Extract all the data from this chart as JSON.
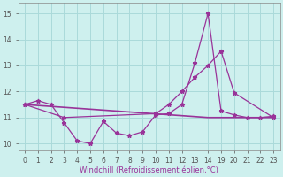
{
  "xlabel": "Windchill (Refroidissement éolien,°C)",
  "bg_color": "#cef0ee",
  "grid_color": "#aadada",
  "line_color": "#993399",
  "xlim": [
    -0.5,
    23.5
  ],
  "ylim": [
    9.75,
    15.4
  ],
  "xticks": [
    0,
    1,
    2,
    3,
    4,
    5,
    6,
    7,
    8,
    9,
    10,
    11,
    12,
    13,
    14,
    19,
    20,
    21,
    22,
    23
  ],
  "yticks": [
    10,
    11,
    12,
    13,
    14,
    15
  ],
  "tick_fontsize": 5.5,
  "xlabel_fontsize": 6,
  "series1_x": [
    0,
    1,
    2,
    3,
    4,
    5,
    6,
    7,
    8,
    9,
    10,
    11,
    12,
    13,
    14,
    19,
    20,
    21,
    22,
    23
  ],
  "series1_y": [
    11.5,
    11.65,
    11.5,
    10.8,
    10.1,
    10.0,
    10.85,
    10.4,
    10.3,
    10.45,
    11.1,
    11.15,
    11.5,
    13.1,
    15.0,
    11.25,
    11.1,
    11.0,
    11.0,
    11.05
  ],
  "series2_x": [
    0,
    3,
    10,
    11,
    12,
    13,
    14,
    19,
    20,
    23
  ],
  "series2_y": [
    11.5,
    11.0,
    11.15,
    11.5,
    12.0,
    12.55,
    13.0,
    13.55,
    11.95,
    11.0
  ],
  "series3_x": [
    0,
    14,
    19,
    23
  ],
  "series3_y": [
    11.5,
    11.0,
    11.0,
    11.0
  ],
  "marker": "*",
  "marker_size": 3.5,
  "linewidth": 0.9
}
